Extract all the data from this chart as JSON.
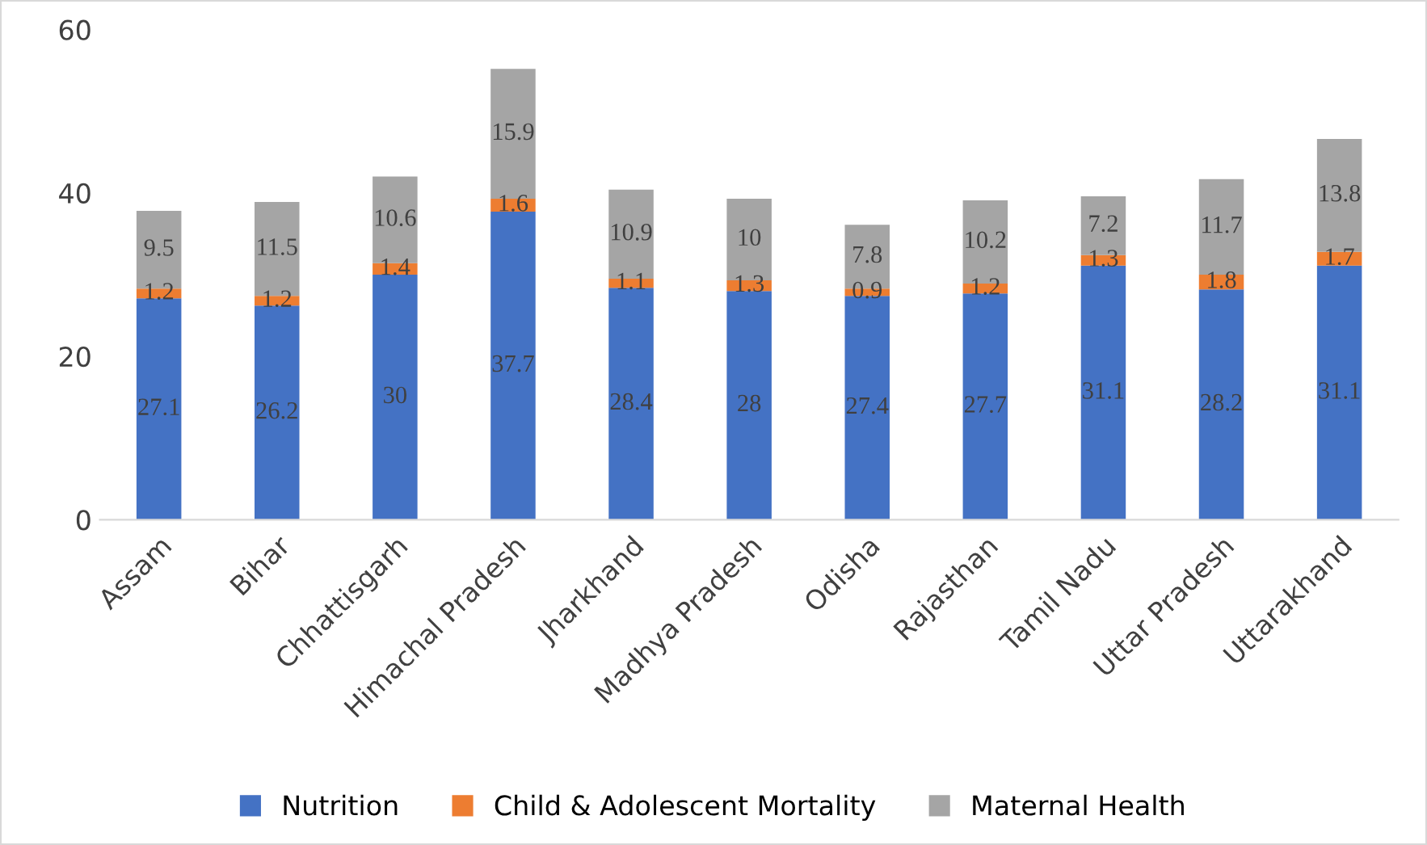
{
  "chart_data": {
    "type": "bar",
    "stacked": true,
    "categories": [
      "Assam",
      "Bihar",
      "Chhattisgarh",
      "Himachal Pradesh",
      "Jharkhand",
      "Madhya Pradesh",
      "Odisha",
      "Rajasthan",
      "Tamil Nadu",
      "Uttar Pradesh",
      "Uttarakhand"
    ],
    "series": [
      {
        "name": "Nutrition",
        "color": "#4472c4",
        "values": [
          27.1,
          26.2,
          30,
          37.7,
          28.4,
          28,
          27.4,
          27.7,
          31.1,
          28.2,
          31.1
        ]
      },
      {
        "name": "Child & Adolescent Mortality",
        "color": "#ed7d31",
        "values": [
          1.2,
          1.2,
          1.4,
          1.6,
          1.1,
          1.3,
          0.9,
          1.2,
          1.3,
          1.8,
          1.7
        ]
      },
      {
        "name": "Maternal Health",
        "color": "#a5a5a5",
        "values": [
          9.5,
          11.5,
          10.6,
          15.9,
          10.9,
          10,
          7.8,
          10.2,
          7.2,
          11.7,
          13.8
        ]
      }
    ],
    "ylim": [
      0,
      60
    ],
    "yticks": [
      0,
      20,
      40,
      60
    ],
    "grid": false,
    "legend": "bottom",
    "data_labels": true
  }
}
